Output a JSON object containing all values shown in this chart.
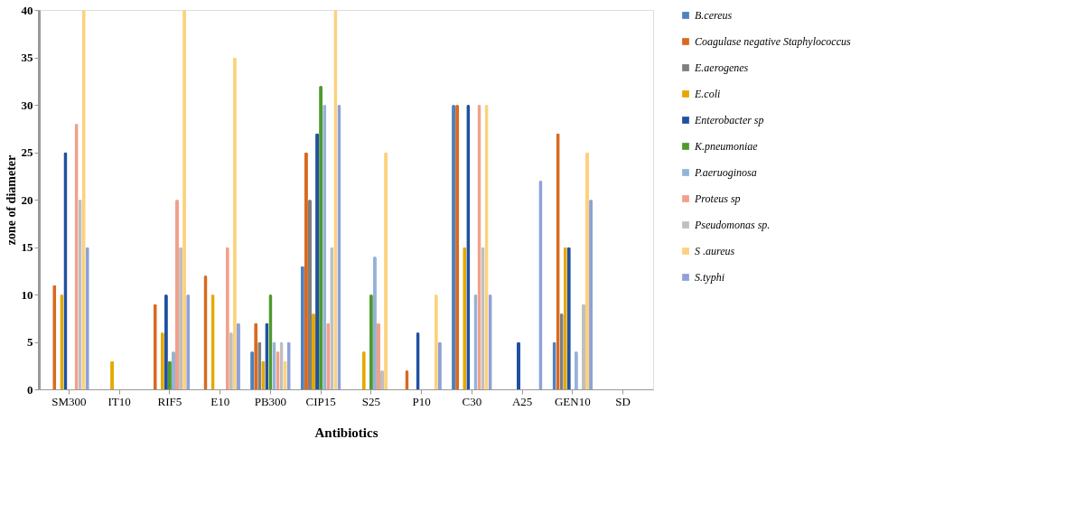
{
  "chart_data": {
    "type": "bar",
    "xlabel": "Antibiotics",
    "ylabel": "zone of diameter",
    "categories": [
      "SM300",
      "IT10",
      "RIF5",
      "E10",
      "PB300",
      "CIP15",
      "S25",
      "P10",
      "C30",
      "A25",
      "GEN10",
      "SD"
    ],
    "ylim": [
      0,
      40
    ],
    "yticks": [
      0,
      5,
      10,
      15,
      20,
      25,
      30,
      35,
      40
    ],
    "grid": false,
    "legend": "right",
    "series": [
      {
        "name": "B.cereus",
        "color": "#4f81bd",
        "values": [
          0,
          0,
          0,
          0,
          4,
          13,
          0,
          0,
          30,
          0,
          5,
          0
        ]
      },
      {
        "name": "Coagulase negative Staphylococcus",
        "color": "#d9691f",
        "values": [
          11,
          0,
          9,
          12,
          7,
          25,
          0,
          2,
          30,
          0,
          27,
          0
        ]
      },
      {
        "name": "E.aerogenes",
        "color": "#7f7f7f",
        "values": [
          0,
          0,
          0,
          0,
          5,
          20,
          0,
          0,
          0,
          0,
          8,
          0
        ]
      },
      {
        "name": "E.coli",
        "color": "#e6a800",
        "values": [
          10,
          3,
          6,
          10,
          3,
          8,
          4,
          0,
          15,
          0,
          15,
          0
        ]
      },
      {
        "name": "Enterobacter sp",
        "color": "#2250a0",
        "values": [
          25,
          0,
          10,
          0,
          7,
          27,
          0,
          6,
          30,
          5,
          15,
          0
        ]
      },
      {
        "name": "K.pneumoniae",
        "color": "#4e9a2e",
        "values": [
          0,
          0,
          3,
          0,
          10,
          32,
          10,
          0,
          0,
          0,
          0,
          0
        ]
      },
      {
        "name": "P.aeruoginosa",
        "color": "#95b3d7",
        "values": [
          0,
          0,
          4,
          0,
          5,
          30,
          14,
          0,
          10,
          0,
          4,
          0
        ]
      },
      {
        "name": "Proteus sp",
        "color": "#f2a08a",
        "values": [
          28,
          0,
          20,
          15,
          4,
          7,
          7,
          0,
          30,
          0,
          0,
          0
        ]
      },
      {
        "name": "Pseudomonas sp.",
        "color": "#bfbfbf",
        "values": [
          20,
          0,
          15,
          6,
          5,
          15,
          2,
          0,
          15,
          0,
          9,
          0
        ]
      },
      {
        "name": "S .aureus",
        "color": "#fcd27e",
        "values": [
          40,
          0,
          40,
          35,
          3,
          40,
          25,
          10,
          30,
          0,
          25,
          0
        ]
      },
      {
        "name": "S.typhi",
        "color": "#8ea2d8",
        "values": [
          15,
          0,
          10,
          7,
          5,
          30,
          0,
          5,
          10,
          22,
          20,
          0
        ]
      }
    ]
  }
}
